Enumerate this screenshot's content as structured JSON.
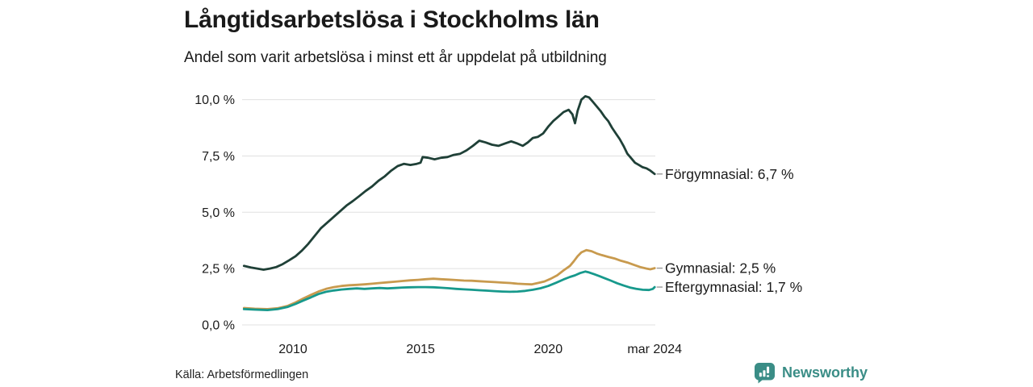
{
  "header": {
    "title": "Långtidsarbetslösa i Stockholms län",
    "subtitle": "Andel som varit arbetslösa i minst ett år uppdelat på utbildning"
  },
  "footer": {
    "source": "Källa: Arbetsförmedlingen",
    "brand": "Newsworthy",
    "brand_icon": "bar-chart-speech-bubble-icon"
  },
  "colors": {
    "background": "#ffffff",
    "text": "#1a1a1a",
    "gridline": "#e0e0e0",
    "connector": "#999999",
    "brand_teal": "#3a8d86",
    "series_forgymnasial": "#1f4037",
    "series_gymnasial": "#c89a4e",
    "series_eftergymnasial": "#17998c"
  },
  "chart_data": {
    "type": "line",
    "title": "Långtidsarbetslösa i Stockholms län",
    "subtitle": "Andel som varit arbetslösa i minst ett år uppdelat på utbildning",
    "xlabel": "",
    "ylabel": "",
    "grid": "horizontal",
    "legend_position": "end-of-line-labels",
    "x_range": [
      2008.05,
      2024.25
    ],
    "y_range": [
      0,
      10.4
    ],
    "y_ticks": [
      {
        "value": 0.0,
        "label": "0,0 %"
      },
      {
        "value": 2.5,
        "label": "2,5 %"
      },
      {
        "value": 5.0,
        "label": "5,0 %"
      },
      {
        "value": 7.5,
        "label": "7,5 %"
      },
      {
        "value": 10.0,
        "label": "10,0 %"
      }
    ],
    "x_ticks": [
      {
        "value": 2010,
        "label": "2010"
      },
      {
        "value": 2015,
        "label": "2015"
      },
      {
        "value": 2020,
        "label": "2020"
      },
      {
        "value": 2024.17,
        "label": "mar 2024"
      }
    ],
    "series": [
      {
        "name": "Förgymnasial",
        "end_value_label": "Förgymnasial: 6,7 %",
        "end_value": 6.7,
        "color": "#1f4037",
        "points": [
          [
            2008.08,
            2.62
          ],
          [
            2008.35,
            2.55
          ],
          [
            2008.6,
            2.5
          ],
          [
            2008.85,
            2.45
          ],
          [
            2009.1,
            2.5
          ],
          [
            2009.35,
            2.57
          ],
          [
            2009.6,
            2.7
          ],
          [
            2009.85,
            2.87
          ],
          [
            2010.1,
            3.05
          ],
          [
            2010.35,
            3.3
          ],
          [
            2010.6,
            3.6
          ],
          [
            2010.85,
            3.95
          ],
          [
            2011.1,
            4.3
          ],
          [
            2011.35,
            4.55
          ],
          [
            2011.6,
            4.8
          ],
          [
            2011.85,
            5.05
          ],
          [
            2012.1,
            5.3
          ],
          [
            2012.35,
            5.5
          ],
          [
            2012.6,
            5.72
          ],
          [
            2012.85,
            5.95
          ],
          [
            2013.1,
            6.15
          ],
          [
            2013.35,
            6.4
          ],
          [
            2013.6,
            6.6
          ],
          [
            2013.85,
            6.85
          ],
          [
            2014.1,
            7.05
          ],
          [
            2014.35,
            7.15
          ],
          [
            2014.6,
            7.1
          ],
          [
            2014.85,
            7.15
          ],
          [
            2015.0,
            7.2
          ],
          [
            2015.08,
            7.45
          ],
          [
            2015.3,
            7.42
          ],
          [
            2015.55,
            7.35
          ],
          [
            2015.8,
            7.42
          ],
          [
            2016.05,
            7.45
          ],
          [
            2016.3,
            7.55
          ],
          [
            2016.55,
            7.6
          ],
          [
            2016.8,
            7.75
          ],
          [
            2017.05,
            7.95
          ],
          [
            2017.3,
            8.18
          ],
          [
            2017.55,
            8.1
          ],
          [
            2017.8,
            8.0
          ],
          [
            2018.05,
            7.95
          ],
          [
            2018.3,
            8.05
          ],
          [
            2018.55,
            8.15
          ],
          [
            2018.8,
            8.05
          ],
          [
            2019.0,
            7.95
          ],
          [
            2019.2,
            8.1
          ],
          [
            2019.4,
            8.3
          ],
          [
            2019.6,
            8.35
          ],
          [
            2019.8,
            8.5
          ],
          [
            2020.0,
            8.8
          ],
          [
            2020.2,
            9.05
          ],
          [
            2020.4,
            9.25
          ],
          [
            2020.6,
            9.45
          ],
          [
            2020.8,
            9.55
          ],
          [
            2020.95,
            9.35
          ],
          [
            2021.05,
            8.95
          ],
          [
            2021.15,
            9.5
          ],
          [
            2021.3,
            10.0
          ],
          [
            2021.45,
            10.15
          ],
          [
            2021.6,
            10.1
          ],
          [
            2021.75,
            9.9
          ],
          [
            2021.9,
            9.7
          ],
          [
            2022.05,
            9.5
          ],
          [
            2022.2,
            9.25
          ],
          [
            2022.35,
            9.05
          ],
          [
            2022.5,
            8.75
          ],
          [
            2022.65,
            8.5
          ],
          [
            2022.8,
            8.25
          ],
          [
            2022.95,
            7.95
          ],
          [
            2023.1,
            7.6
          ],
          [
            2023.25,
            7.4
          ],
          [
            2023.4,
            7.2
          ],
          [
            2023.55,
            7.1
          ],
          [
            2023.7,
            7.0
          ],
          [
            2023.85,
            6.95
          ],
          [
            2024.0,
            6.85
          ],
          [
            2024.17,
            6.7
          ]
        ]
      },
      {
        "name": "Gymnasial",
        "end_value_label": "Gymnasial: 2,5 %",
        "end_value": 2.5,
        "color": "#c89a4e",
        "points": [
          [
            2008.08,
            0.75
          ],
          [
            2008.5,
            0.72
          ],
          [
            2009.0,
            0.7
          ],
          [
            2009.4,
            0.74
          ],
          [
            2009.8,
            0.85
          ],
          [
            2010.1,
            1.0
          ],
          [
            2010.4,
            1.17
          ],
          [
            2010.7,
            1.33
          ],
          [
            2011.0,
            1.48
          ],
          [
            2011.3,
            1.6
          ],
          [
            2011.6,
            1.68
          ],
          [
            2011.9,
            1.73
          ],
          [
            2012.2,
            1.76
          ],
          [
            2012.5,
            1.78
          ],
          [
            2012.8,
            1.8
          ],
          [
            2013.1,
            1.83
          ],
          [
            2013.4,
            1.86
          ],
          [
            2013.7,
            1.89
          ],
          [
            2014.0,
            1.92
          ],
          [
            2014.3,
            1.95
          ],
          [
            2014.6,
            1.98
          ],
          [
            2014.9,
            2.0
          ],
          [
            2015.2,
            2.03
          ],
          [
            2015.5,
            2.05
          ],
          [
            2015.8,
            2.03
          ],
          [
            2016.1,
            2.01
          ],
          [
            2016.4,
            1.99
          ],
          [
            2016.7,
            1.97
          ],
          [
            2017.0,
            1.96
          ],
          [
            2017.3,
            1.94
          ],
          [
            2017.6,
            1.92
          ],
          [
            2017.9,
            1.9
          ],
          [
            2018.2,
            1.88
          ],
          [
            2018.5,
            1.86
          ],
          [
            2018.8,
            1.83
          ],
          [
            2019.1,
            1.81
          ],
          [
            2019.35,
            1.8
          ],
          [
            2019.6,
            1.86
          ],
          [
            2019.85,
            1.93
          ],
          [
            2020.1,
            2.05
          ],
          [
            2020.35,
            2.2
          ],
          [
            2020.6,
            2.42
          ],
          [
            2020.85,
            2.62
          ],
          [
            2021.0,
            2.82
          ],
          [
            2021.15,
            3.05
          ],
          [
            2021.3,
            3.22
          ],
          [
            2021.5,
            3.32
          ],
          [
            2021.7,
            3.27
          ],
          [
            2021.9,
            3.17
          ],
          [
            2022.1,
            3.1
          ],
          [
            2022.35,
            3.02
          ],
          [
            2022.6,
            2.95
          ],
          [
            2022.85,
            2.85
          ],
          [
            2023.1,
            2.77
          ],
          [
            2023.35,
            2.67
          ],
          [
            2023.6,
            2.57
          ],
          [
            2023.85,
            2.5
          ],
          [
            2024.0,
            2.47
          ],
          [
            2024.17,
            2.52
          ]
        ]
      },
      {
        "name": "Eftergymnasial",
        "end_value_label": "Eftergymnasial: 1,7 %",
        "end_value": 1.7,
        "color": "#17998c",
        "points": [
          [
            2008.08,
            0.7
          ],
          [
            2008.5,
            0.68
          ],
          [
            2009.0,
            0.66
          ],
          [
            2009.4,
            0.7
          ],
          [
            2009.8,
            0.8
          ],
          [
            2010.1,
            0.93
          ],
          [
            2010.4,
            1.08
          ],
          [
            2010.7,
            1.22
          ],
          [
            2011.0,
            1.37
          ],
          [
            2011.3,
            1.47
          ],
          [
            2011.6,
            1.53
          ],
          [
            2011.9,
            1.57
          ],
          [
            2012.2,
            1.6
          ],
          [
            2012.5,
            1.62
          ],
          [
            2012.8,
            1.6
          ],
          [
            2013.1,
            1.62
          ],
          [
            2013.4,
            1.64
          ],
          [
            2013.7,
            1.62
          ],
          [
            2014.0,
            1.64
          ],
          [
            2014.3,
            1.66
          ],
          [
            2014.6,
            1.67
          ],
          [
            2014.9,
            1.68
          ],
          [
            2015.2,
            1.68
          ],
          [
            2015.5,
            1.67
          ],
          [
            2015.8,
            1.65
          ],
          [
            2016.1,
            1.63
          ],
          [
            2016.4,
            1.6
          ],
          [
            2016.7,
            1.58
          ],
          [
            2017.0,
            1.56
          ],
          [
            2017.3,
            1.54
          ],
          [
            2017.6,
            1.52
          ],
          [
            2017.9,
            1.5
          ],
          [
            2018.2,
            1.48
          ],
          [
            2018.5,
            1.47
          ],
          [
            2018.8,
            1.48
          ],
          [
            2019.1,
            1.51
          ],
          [
            2019.4,
            1.56
          ],
          [
            2019.7,
            1.63
          ],
          [
            2020.0,
            1.73
          ],
          [
            2020.3,
            1.87
          ],
          [
            2020.6,
            2.02
          ],
          [
            2020.85,
            2.13
          ],
          [
            2021.05,
            2.2
          ],
          [
            2021.25,
            2.3
          ],
          [
            2021.45,
            2.37
          ],
          [
            2021.6,
            2.33
          ],
          [
            2021.8,
            2.25
          ],
          [
            2022.0,
            2.17
          ],
          [
            2022.2,
            2.08
          ],
          [
            2022.45,
            1.97
          ],
          [
            2022.7,
            1.85
          ],
          [
            2022.95,
            1.75
          ],
          [
            2023.2,
            1.66
          ],
          [
            2023.45,
            1.6
          ],
          [
            2023.7,
            1.56
          ],
          [
            2023.95,
            1.55
          ],
          [
            2024.1,
            1.6
          ],
          [
            2024.17,
            1.68
          ]
        ]
      }
    ],
    "source": "Källa: Arbetsförmedlingen"
  }
}
